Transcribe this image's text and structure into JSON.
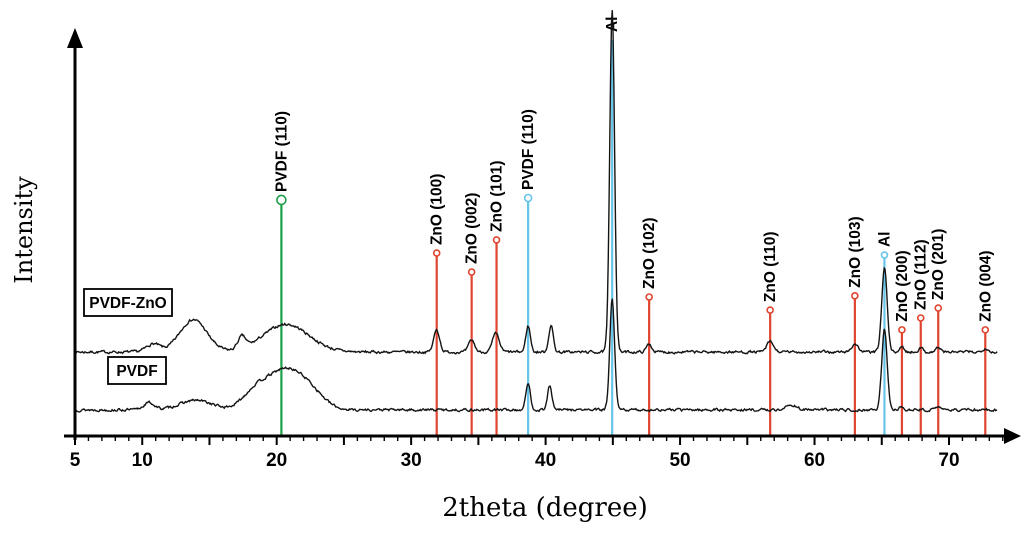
{
  "figure": {
    "xlabel": "2theta (degree)",
    "ylabel": "Intensity"
  },
  "chart_data": {
    "type": "line",
    "title": "",
    "xlabel": "2theta (degree)",
    "ylabel": "Intensity",
    "x_range": [
      5,
      74.5
    ],
    "x_ticks": [
      5,
      10,
      20,
      30,
      40,
      50,
      60,
      70
    ],
    "grid": false,
    "curve_color": "#141414",
    "series": [
      {
        "name": "PVDF-ZnO",
        "seed": 7,
        "baseline": 0.212,
        "peaks": [
          [
            10.8,
            0.5,
            0.02
          ],
          [
            13.8,
            1.0,
            0.082
          ],
          [
            17.4,
            0.3,
            0.03
          ],
          [
            20.7,
            1.7,
            0.07
          ],
          [
            31.9,
            0.22,
            0.056
          ],
          [
            34.5,
            0.22,
            0.03
          ],
          [
            36.3,
            0.25,
            0.046
          ],
          [
            38.7,
            0.17,
            0.066
          ],
          [
            40.4,
            0.17,
            0.067
          ],
          [
            44.95,
            0.18,
            0.868
          ],
          [
            47.7,
            0.2,
            0.02
          ],
          [
            56.7,
            0.25,
            0.026
          ],
          [
            63.0,
            0.25,
            0.02
          ],
          [
            65.2,
            0.2,
            0.212
          ],
          [
            66.5,
            0.18,
            0.012
          ],
          [
            67.9,
            0.18,
            0.01
          ],
          [
            69.2,
            0.18,
            0.012
          ],
          [
            72.7,
            0.2,
            0.01
          ]
        ]
      },
      {
        "name": "PVDF",
        "seed": 13,
        "baseline": 0.066,
        "peaks": [
          [
            10.5,
            0.4,
            0.018
          ],
          [
            14.0,
            1.2,
            0.024
          ],
          [
            18.3,
            0.9,
            0.035
          ],
          [
            20.6,
            1.4,
            0.1
          ],
          [
            22.6,
            1.0,
            0.03
          ],
          [
            38.7,
            0.17,
            0.066
          ],
          [
            40.3,
            0.17,
            0.06
          ],
          [
            44.95,
            0.18,
            0.278
          ],
          [
            58.3,
            0.4,
            0.012
          ],
          [
            65.2,
            0.2,
            0.202
          ],
          [
            66.5,
            0.18,
            0.008
          ],
          [
            69.3,
            0.18,
            0.008
          ]
        ]
      }
    ],
    "reference_lines": [
      {
        "label": "PVDF (110)",
        "x": 20.35,
        "color": "#1ca04a",
        "h": 0.596,
        "r": 4.5
      },
      {
        "label": "ZnO (100)",
        "x": 31.9,
        "color": "#e0452f",
        "h": 0.462,
        "r": 3
      },
      {
        "label": "ZnO (002)",
        "x": 34.5,
        "color": "#e0452f",
        "h": 0.414,
        "r": 3
      },
      {
        "label": "ZnO (101)",
        "x": 36.35,
        "color": "#e0452f",
        "h": 0.495,
        "r": 3
      },
      {
        "label": "PVDF (110)",
        "x": 38.7,
        "color": "#66c5e8",
        "h": 0.601,
        "r": 3.5
      },
      {
        "label": "Al",
        "x": 44.95,
        "color": "#66c5e8",
        "h": 1.0,
        "r": 0
      },
      {
        "label": "ZnO (102)",
        "x": 47.7,
        "color": "#e0452f",
        "h": 0.351,
        "r": 3
      },
      {
        "label": "ZnO (110)",
        "x": 56.7,
        "color": "#e0452f",
        "h": 0.318,
        "r": 3
      },
      {
        "label": "ZnO (103)",
        "x": 63.0,
        "color": "#e0452f",
        "h": 0.354,
        "r": 3
      },
      {
        "label": "Al",
        "x": 65.2,
        "color": "#66c5e8",
        "h": 0.457,
        "r": 3
      },
      {
        "label": "ZnO (200)",
        "x": 66.5,
        "color": "#e0452f",
        "h": 0.268,
        "r": 3
      },
      {
        "label": "ZnO (112)",
        "x": 67.9,
        "color": "#e0452f",
        "h": 0.298,
        "r": 3
      },
      {
        "label": "ZnO (201)",
        "x": 69.2,
        "color": "#e0452f",
        "h": 0.323,
        "r": 3
      },
      {
        "label": "ZnO (004)",
        "x": 72.7,
        "color": "#e0452f",
        "h": 0.268,
        "r": 3
      }
    ],
    "sample_labels": [
      "PVDF-ZnO",
      "PVDF"
    ]
  }
}
